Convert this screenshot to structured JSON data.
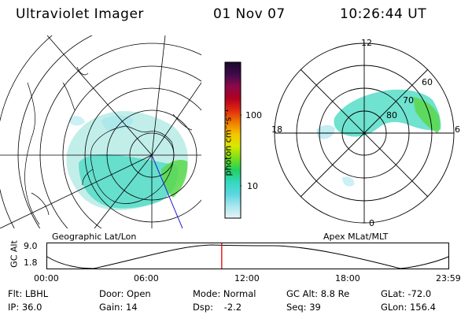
{
  "header": {
    "instrument": "Ultraviolet Imager",
    "date": "01 Nov 07",
    "time": "10:26:44 UT"
  },
  "left_panel": {
    "caption": "Geographic Lat/Lon"
  },
  "right_panel": {
    "caption": "Apex MLat/MLT",
    "mlt_labels": [
      "12",
      "18",
      "6",
      "0"
    ],
    "mlat_labels": [
      "60",
      "70",
      "80"
    ]
  },
  "colorbar": {
    "unit_label": "photon cm⁻²s⁻¹",
    "ticks": [
      "100",
      "10"
    ],
    "colors": [
      "#1a0a2a",
      "#3d0a4a",
      "#8a0a4a",
      "#b00020",
      "#e02a10",
      "#f07a00",
      "#f5c400",
      "#d8e800",
      "#7ae01a",
      "#22d060",
      "#34d8c0",
      "#5cd6e0",
      "#a8e6ee",
      "#e6f4f6"
    ]
  },
  "altitude_plot": {
    "ylabel": "GC Alt",
    "y_ticks": [
      "9.0",
      "1.8"
    ],
    "x_ticks": [
      "00:00",
      "06:00",
      "12:00",
      "18:00",
      "23:59"
    ],
    "current_time_fraction": 0.435,
    "marker_color": "#e00000"
  },
  "info": {
    "flt_label": "Flt:",
    "flt_value": "LBHL",
    "ip_label": "IP:",
    "ip_value": "36.0",
    "door_label": "Door:",
    "door_value": "Open",
    "gain_label": "Gain:",
    "gain_value": "14",
    "mode_label": "Mode:",
    "mode_value": "Normal",
    "dsp_label": "Dsp:",
    "dsp_value": "-2.2",
    "gcalt_label": "GC Alt:",
    "gcalt_value": "8.8 Re",
    "seq_label": "Seq:",
    "seq_value": "39",
    "glat_label": "GLat:",
    "glat_value": "-72.0",
    "glon_label": "GLon:",
    "glon_value": "156.4"
  }
}
